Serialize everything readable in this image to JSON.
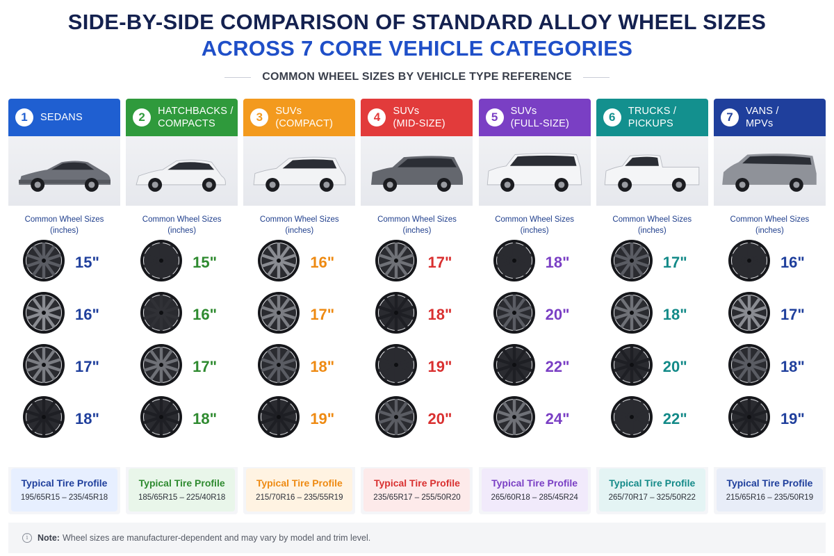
{
  "title": {
    "line1": "SIDE-BY-SIDE COMPARISON OF STANDARD ALLOY WHEEL SIZES",
    "line2": "ACROSS 7 CORE VEHICLE CATEGORIES"
  },
  "subtitle": "COMMON WHEEL SIZES BY VEHICLE TYPE REFERENCE",
  "note": {
    "label": "Note:",
    "text": "Wheel sizes are manufacturer-dependent and may vary by model and trim level.",
    "icon": "info-icon"
  },
  "categories": [
    {
      "number": "1",
      "name": "SEDANS",
      "color": "#1f5fd1",
      "tint": "#e7efff",
      "vehicle": "sedan",
      "sizes_caption": "Common Wheel Sizes\n(inches)",
      "sizes": [
        "15\"",
        "16\"",
        "17\"",
        "18\""
      ],
      "wheel_shades": [
        "#5a5c63",
        "#8a8c92",
        "#7b7d83",
        "#1e1f24"
      ],
      "tire_title": "Typical Tire Profile",
      "tire_range": "195/65R15 – 235/45R18",
      "text_color": "#1f3f9c"
    },
    {
      "number": "2",
      "name": "HATCHBACKS /\nCOMPACTS",
      "color": "#2f9a3c",
      "tint": "#e9f6ea",
      "vehicle": "hatch",
      "sizes_caption": "Common Wheel Sizes\n(inches)",
      "sizes": [
        "15\"",
        "16\"",
        "17\"",
        "18\""
      ],
      "wheel_shades": [
        "#2a2b30",
        "#303136",
        "#6f7177",
        "#1e1f24"
      ],
      "tire_title": "Typical Tire Profile",
      "tire_range": "185/65R15 – 225/40R18",
      "text_color": "#2e8a2f"
    },
    {
      "number": "3",
      "name": "SUVs\n(COMPACT)",
      "color": "#f39a1e",
      "tint": "#fff3e2",
      "vehicle": "suv-compact",
      "sizes_caption": "Common Wheel Sizes\n(inches)",
      "sizes": [
        "16\"",
        "17\"",
        "18\"",
        "19\""
      ],
      "wheel_shades": [
        "#8a8c92",
        "#7b7d83",
        "#5a5c63",
        "#1e1f24"
      ],
      "tire_title": "Typical Tire Profile",
      "tire_range": "215/70R16 – 235/55R19",
      "text_color": "#ee8a12"
    },
    {
      "number": "4",
      "name": "SUVs\n(MID-SIZE)",
      "color": "#e23b3b",
      "tint": "#fdeaea",
      "vehicle": "suv-mid",
      "sizes_caption": "Common Wheel Sizes\n(inches)",
      "sizes": [
        "17\"",
        "18\"",
        "19\"",
        "20\""
      ],
      "wheel_shades": [
        "#6f7177",
        "#1e1f24",
        "#2a2b30",
        "#5a5c63"
      ],
      "tire_title": "Typical Tire Profile",
      "tire_range": "235/65R17 – 255/50R20",
      "text_color": "#d93030"
    },
    {
      "number": "5",
      "name": "SUVs\n(FULL-SIZE)",
      "color": "#7a3fc4",
      "tint": "#f1eafb",
      "vehicle": "suv-full",
      "sizes_caption": "Common Wheel Sizes\n(inches)",
      "sizes": [
        "18\"",
        "20\"",
        "22\"",
        "24\""
      ],
      "wheel_shades": [
        "#2a2b30",
        "#5a5c63",
        "#1e1f24",
        "#6f7177"
      ],
      "tire_title": "Typical Tire Profile",
      "tire_range": "265/60R18 – 285/45R24",
      "text_color": "#7a3fc4"
    },
    {
      "number": "6",
      "name": "TRUCKS /\nPICKUPS",
      "color": "#13908e",
      "tint": "#e4f4f4",
      "vehicle": "truck",
      "sizes_caption": "Common Wheel Sizes\n(inches)",
      "sizes": [
        "17\"",
        "18\"",
        "20\"",
        "22\""
      ],
      "wheel_shades": [
        "#5a5c63",
        "#6f7177",
        "#1e1f24",
        "#2a2b30"
      ],
      "tire_title": "Typical Tire Profile",
      "tire_range": "265/70R17 – 325/50R22",
      "text_color": "#138a88"
    },
    {
      "number": "7",
      "name": "VANS /\nMPVs",
      "color": "#1f3f9c",
      "tint": "#e8edf8",
      "vehicle": "van",
      "sizes_caption": "Common Wheel Sizes\n(inches)",
      "sizes": [
        "16\"",
        "17\"",
        "18\"",
        "19\""
      ],
      "wheel_shades": [
        "#2a2b30",
        "#8a8c92",
        "#5a5c63",
        "#1e1f24"
      ],
      "tire_title": "Typical Tire Profile",
      "tire_range": "215/65R16 – 235/50R19",
      "text_color": "#1f3f9c"
    }
  ]
}
